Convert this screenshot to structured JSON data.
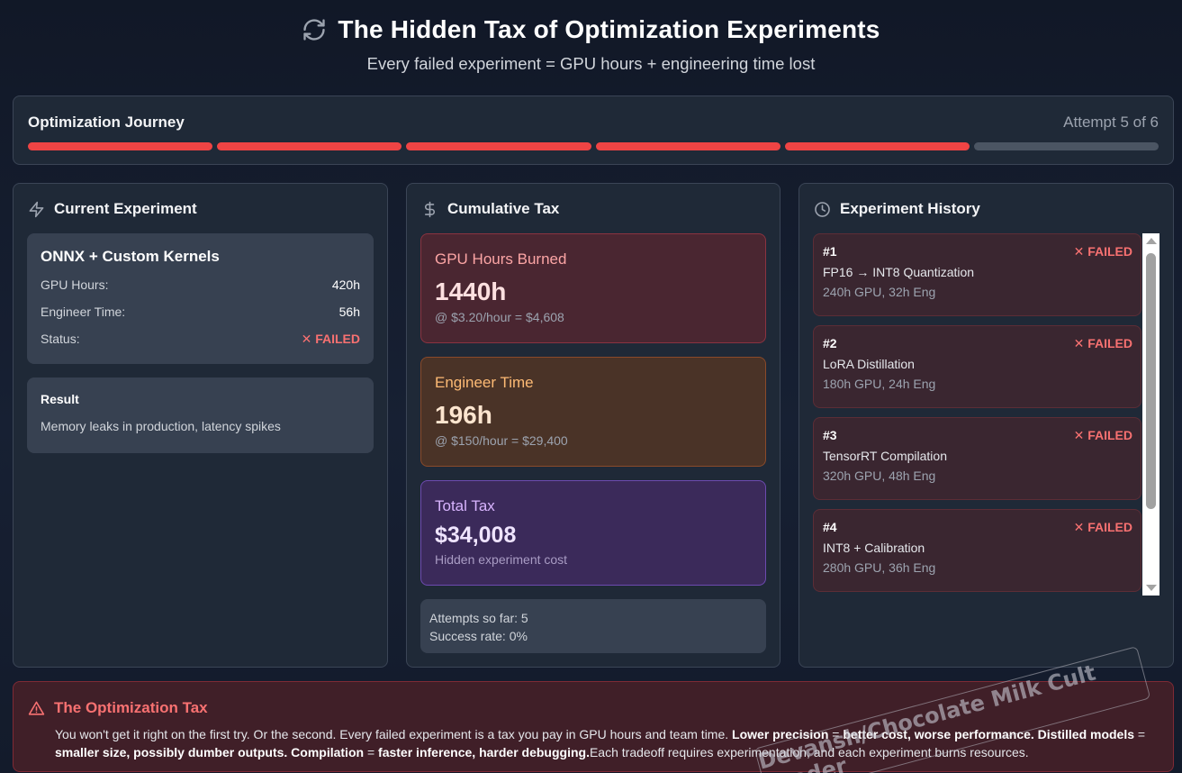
{
  "header": {
    "title": "The Hidden Tax of Optimization Experiments",
    "subtitle": "Every failed experiment = GPU hours + engineering time lost",
    "icon": "refresh-icon"
  },
  "journey": {
    "title": "Optimization Journey",
    "attempt_label": "Attempt 5 of 6",
    "segments": [
      "failed",
      "failed",
      "failed",
      "failed",
      "failed",
      "pending"
    ]
  },
  "current_experiment": {
    "heading": "Current Experiment",
    "icon": "lightning-icon",
    "name": "ONNX + Custom Kernels",
    "gpu_hours_label": "GPU Hours:",
    "gpu_hours_value": "420h",
    "engineer_time_label": "Engineer Time:",
    "engineer_time_value": "56h",
    "status_label": "Status:",
    "status_value": "✕ FAILED",
    "result_label": "Result",
    "result_text": "Memory leaks in production, latency spikes"
  },
  "cumulative_tax": {
    "heading": "Cumulative Tax",
    "icon": "dollar-icon",
    "gpu": {
      "label": "GPU Hours Burned",
      "value": "1440h",
      "sub": "@ $3.20/hour = $4,608"
    },
    "engineer": {
      "label": "Engineer Time",
      "value": "196h",
      "sub": "@ $150/hour = $29,400"
    },
    "total": {
      "label": "Total Tax",
      "value": "$34,008",
      "sub": "Hidden experiment cost"
    },
    "attempts_text": "Attempts so far: 5",
    "success_text": "Success rate: 0%"
  },
  "history": {
    "heading": "Experiment History",
    "icon": "clock-icon",
    "items": [
      {
        "num": "#1",
        "status": "✕ FAILED",
        "name": "FP16 → INT8 Quantization",
        "meta": "240h GPU, 32h Eng"
      },
      {
        "num": "#2",
        "status": "✕ FAILED",
        "name": "LoRA Distillation",
        "meta": "180h GPU, 24h Eng"
      },
      {
        "num": "#3",
        "status": "✕ FAILED",
        "name": "TensorRT Compilation",
        "meta": "320h GPU, 48h Eng"
      },
      {
        "num": "#4",
        "status": "✕ FAILED",
        "name": "INT8 + Calibration",
        "meta": "280h GPU, 36h Eng"
      }
    ]
  },
  "warning": {
    "icon": "warning-triangle-icon",
    "title": "The Optimization Tax",
    "text_1": "You won't get it right on the first try. Or the second. Every failed experiment is a tax you pay in GPU hours and team time. ",
    "bold_1": "Lower precision",
    "text_2": " = ",
    "bold_2": "better cost, worse performance. Distilled models",
    "text_3": " = ",
    "bold_3": "smaller size, possibly dumber outputs. Compilation",
    "text_4": " = ",
    "bold_4": "faster inference, harder debugging.",
    "text_5": "Each tradeoff requires experimentation, and each experiment burns resources."
  },
  "watermark": "Devansh/Chocolate Milk Cult Leader",
  "colors": {
    "background": "#111827",
    "panel": "#1f2937",
    "failed": "#ef4444",
    "pending": "#4b5563",
    "gpu_card": "#4a2631",
    "engineer_card": "#4a3327",
    "total_card": "#3b2a5a"
  }
}
